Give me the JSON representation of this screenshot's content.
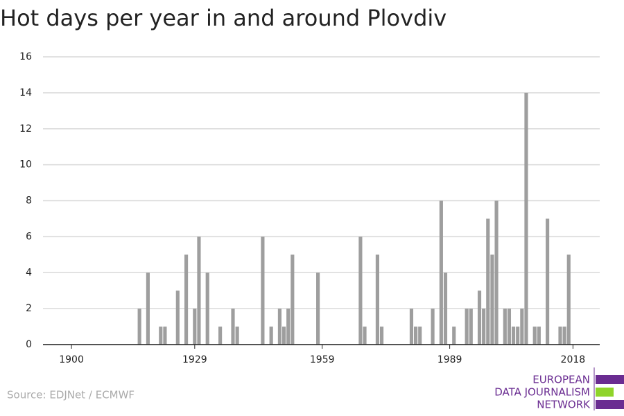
{
  "chart_data": {
    "type": "bar",
    "title": "Hot days per year in and around Plovdiv",
    "x": [
      1916,
      1918,
      1921,
      1922,
      1925,
      1927,
      1929,
      1930,
      1932,
      1935,
      1938,
      1939,
      1945,
      1947,
      1949,
      1950,
      1951,
      1952,
      1958,
      1968,
      1969,
      1972,
      1973,
      1980,
      1981,
      1982,
      1985,
      1987,
      1988,
      1990,
      1993,
      1994,
      1996,
      1997,
      1998,
      1999,
      2000,
      2002,
      2003,
      2004,
      2005,
      2006,
      2007,
      2009,
      2010,
      2012,
      2015,
      2016,
      2017
    ],
    "values": [
      2,
      4,
      1,
      1,
      3,
      5,
      2,
      6,
      4,
      1,
      2,
      1,
      6,
      1,
      2,
      1,
      2,
      5,
      4,
      6,
      1,
      5,
      1,
      2,
      1,
      1,
      2,
      8,
      4,
      1,
      2,
      2,
      3,
      2,
      7,
      5,
      8,
      2,
      2,
      1,
      1,
      2,
      14,
      1,
      1,
      7,
      1,
      1,
      5
    ],
    "color": "#9e9e9e",
    "xlim": [
      1893.3,
      2024.3
    ],
    "xticks": [
      1900,
      1929,
      1959,
      1989,
      2018
    ],
    "ylim": [
      0,
      16
    ],
    "yticks": [
      0,
      2,
      4,
      6,
      8,
      10,
      12,
      14,
      16
    ],
    "grid": true
  },
  "source": "Source: EDJNet / ECMWF",
  "logo": [
    "EUROPEAN",
    "DATA JOURNALISM",
    "NETWORK"
  ]
}
